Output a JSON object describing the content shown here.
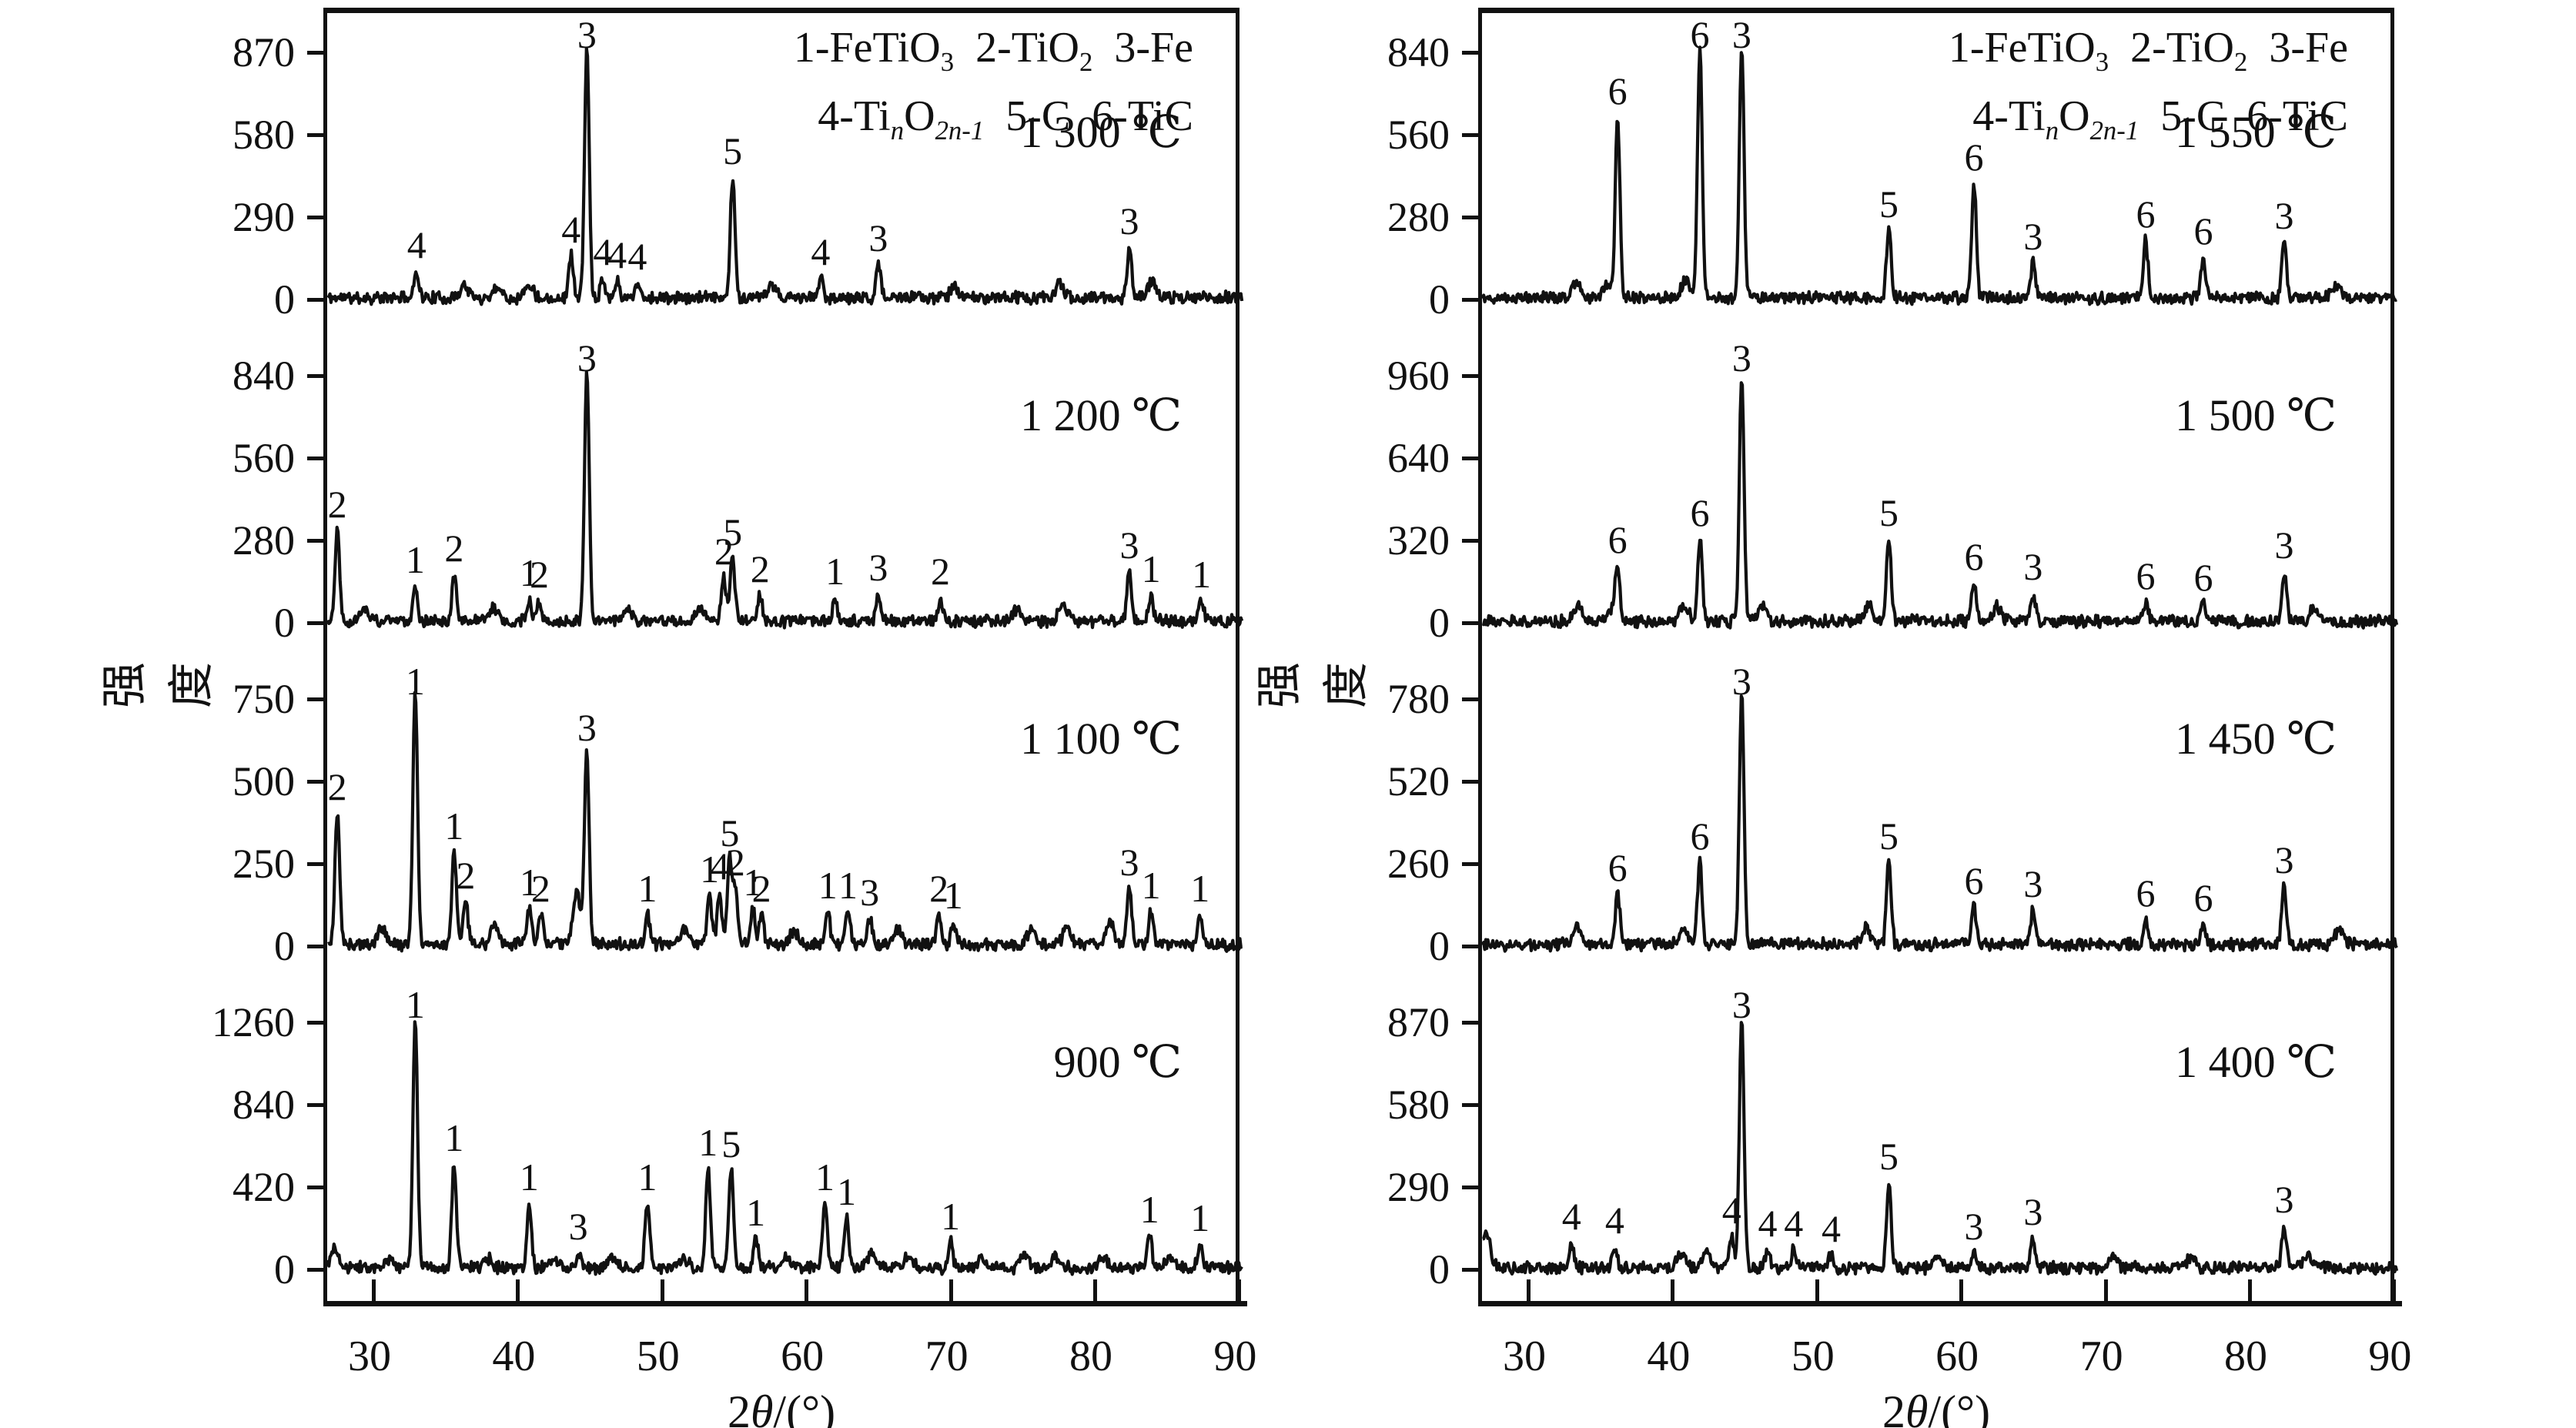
{
  "chart_data": {
    "type": "line",
    "title": "",
    "xlabel": "2θ/(°)",
    "ylabel": "强度",
    "x_range": [
      26.8,
      90.3
    ],
    "xticks": [
      30,
      40,
      50,
      60,
      70,
      80,
      90
    ],
    "grid": false,
    "ink_color": "#111111",
    "background_color": "#ffffff",
    "legend_text": [
      "1-FeTiO3  2-TiO2  3-Fe",
      "4-TinO2n-1  5-C  6-TiC"
    ],
    "legend_segments": [
      [
        [
          "1-FeTiO",
          ""
        ],
        [
          "3",
          "sub"
        ],
        [
          "  2-TiO",
          ""
        ],
        [
          "2",
          "sub"
        ],
        [
          "  3-Fe",
          ""
        ]
      ],
      [
        [
          "4-Ti",
          ""
        ],
        [
          "n",
          "isub"
        ],
        [
          "O",
          ""
        ],
        [
          "2n-1",
          "isub"
        ],
        [
          "  5-C  6-TiC",
          ""
        ]
      ]
    ],
    "xlabel_segments": [
      [
        "2",
        ""
      ],
      [
        "θ",
        "ital"
      ],
      [
        "/(°)",
        ""
      ]
    ],
    "phase_key": {
      "1": "FeTiO3",
      "2": "TiO2",
      "3": "Fe",
      "4": "TinO2n-1",
      "5": "C",
      "6": "TiC"
    },
    "panels": [
      {
        "name": "left",
        "subplots": [
          {
            "temperature": "1 300 ℃",
            "yticks": [
              870,
              580,
              290,
              0
            ],
            "seed": 11,
            "peaks": [
              [
                33.0,
                95,
                "4"
              ],
              [
                36.3,
                45,
                null
              ],
              [
                38.6,
                40,
                null
              ],
              [
                40.8,
                50,
                null
              ],
              [
                43.7,
                150,
                "4"
              ],
              [
                44.8,
                880,
                "3"
              ],
              [
                45.9,
                70,
                "4"
              ],
              [
                46.9,
                60,
                "4"
              ],
              [
                48.3,
                55,
                "4"
              ],
              [
                54.9,
                425,
                "5"
              ],
              [
                57.6,
                40,
                null
              ],
              [
                61.0,
                70,
                "4"
              ],
              [
                65.0,
                120,
                "3"
              ],
              [
                70.3,
                40,
                null
              ],
              [
                77.6,
                50,
                null
              ],
              [
                82.4,
                180,
                "3"
              ],
              [
                84.0,
                60,
                null
              ]
            ]
          },
          {
            "temperature": "1 200 ℃",
            "yticks": [
              840,
              560,
              280,
              0
            ],
            "seed": 22,
            "peaks": [
              [
                27.5,
                310,
                "2"
              ],
              [
                29.4,
                50,
                null
              ],
              [
                32.9,
                120,
                "1"
              ],
              [
                35.6,
                160,
                "2"
              ],
              [
                38.3,
                45,
                null
              ],
              [
                40.8,
                75,
                "1"
              ],
              [
                41.5,
                70,
                "2"
              ],
              [
                44.8,
                850,
                "3"
              ],
              [
                47.6,
                40,
                null
              ],
              [
                52.6,
                45,
                null
              ],
              [
                54.3,
                150,
                "2"
              ],
              [
                54.9,
                215,
                "5"
              ],
              [
                56.8,
                90,
                "2"
              ],
              [
                62.0,
                80,
                "1"
              ],
              [
                65.0,
                95,
                "3"
              ],
              [
                69.3,
                80,
                "2"
              ],
              [
                74.6,
                40,
                null
              ],
              [
                77.8,
                60,
                null
              ],
              [
                82.4,
                170,
                "3"
              ],
              [
                83.9,
                90,
                "1"
              ],
              [
                87.4,
                70,
                "1"
              ]
            ]
          },
          {
            "temperature": "1 100 ℃",
            "yticks": [
              750,
              500,
              250,
              0
            ],
            "seed": 33,
            "peaks": [
              [
                27.5,
                400,
                "2"
              ],
              [
                30.6,
                50,
                null
              ],
              [
                32.9,
                770,
                "1"
              ],
              [
                35.6,
                280,
                "1"
              ],
              [
                36.4,
                130,
                "2"
              ],
              [
                38.4,
                60,
                null
              ],
              [
                40.8,
                110,
                "1"
              ],
              [
                41.6,
                90,
                "2"
              ],
              [
                44.1,
                150,
                null
              ],
              [
                44.8,
                580,
                "3"
              ],
              [
                49.0,
                90,
                "1"
              ],
              [
                51.6,
                50,
                null
              ],
              [
                53.3,
                150,
                "1"
              ],
              [
                54.0,
                160,
                "4"
              ],
              [
                54.7,
                260,
                "5"
              ],
              [
                55.1,
                170,
                "2"
              ],
              [
                56.3,
                110,
                "1"
              ],
              [
                56.9,
                90,
                "2"
              ],
              [
                59.2,
                40,
                null
              ],
              [
                61.5,
                100,
                "1"
              ],
              [
                62.9,
                100,
                "1"
              ],
              [
                64.4,
                80,
                "3"
              ],
              [
                66.3,
                50,
                null
              ],
              [
                69.2,
                90,
                "2"
              ],
              [
                70.2,
                70,
                "1"
              ],
              [
                75.6,
                45,
                null
              ],
              [
                78.1,
                50,
                null
              ],
              [
                81.0,
                70,
                null
              ],
              [
                82.4,
                170,
                "3"
              ],
              [
                83.9,
                100,
                "1"
              ],
              [
                87.3,
                90,
                "1"
              ]
            ]
          },
          {
            "temperature": "900 ℃",
            "yticks": [
              1260,
              840,
              420,
              0
            ],
            "seed": 44,
            "peaks": [
              [
                27.3,
                90,
                null
              ],
              [
                31.1,
                40,
                null
              ],
              [
                32.9,
                1270,
                "1"
              ],
              [
                35.6,
                530,
                "1"
              ],
              [
                37.9,
                50,
                null
              ],
              [
                40.8,
                330,
                "1"
              ],
              [
                42.6,
                45,
                null
              ],
              [
                44.2,
                80,
                "3"
              ],
              [
                46.6,
                60,
                null
              ],
              [
                49.0,
                330,
                "1"
              ],
              [
                51.6,
                45,
                null
              ],
              [
                53.2,
                505,
                "1"
              ],
              [
                54.8,
                500,
                "5"
              ],
              [
                56.5,
                150,
                "1"
              ],
              [
                58.6,
                60,
                null
              ],
              [
                61.3,
                330,
                "1"
              ],
              [
                62.8,
                255,
                "1"
              ],
              [
                64.6,
                80,
                null
              ],
              [
                67.1,
                60,
                null
              ],
              [
                70.0,
                130,
                "1"
              ],
              [
                72.2,
                50,
                null
              ],
              [
                75.1,
                60,
                null
              ],
              [
                77.2,
                50,
                null
              ],
              [
                80.6,
                60,
                null
              ],
              [
                83.8,
                165,
                "1"
              ],
              [
                85.2,
                50,
                null
              ],
              [
                87.3,
                120,
                "1"
              ]
            ]
          }
        ]
      },
      {
        "name": "right",
        "subplots": [
          {
            "temperature": "1 550 ℃",
            "yticks": [
              840,
              560,
              280,
              0
            ],
            "seed": 55,
            "peaks": [
              [
                33.4,
                60,
                null
              ],
              [
                35.4,
                45,
                null
              ],
              [
                36.2,
                615,
                "6"
              ],
              [
                40.9,
                60,
                null
              ],
              [
                41.9,
                850,
                "6"
              ],
              [
                44.8,
                845,
                "3"
              ],
              [
                55.0,
                230,
                "5"
              ],
              [
                60.9,
                390,
                "6"
              ],
              [
                65.0,
                120,
                "3"
              ],
              [
                72.8,
                195,
                "6"
              ],
              [
                76.8,
                140,
                "6"
              ],
              [
                82.4,
                190,
                "3"
              ],
              [
                86.0,
                45,
                null
              ]
            ]
          },
          {
            "temperature": "1 500 ℃",
            "yticks": [
              960,
              640,
              320,
              0
            ],
            "seed": 66,
            "peaks": [
              [
                33.5,
                65,
                null
              ],
              [
                35.8,
                40,
                null
              ],
              [
                36.2,
                215,
                "6"
              ],
              [
                40.8,
                70,
                null
              ],
              [
                41.9,
                320,
                "6"
              ],
              [
                44.8,
                950,
                "3"
              ],
              [
                46.2,
                60,
                null
              ],
              [
                53.6,
                60,
                null
              ],
              [
                55.0,
                320,
                "5"
              ],
              [
                60.9,
                150,
                "6"
              ],
              [
                62.5,
                55,
                null
              ],
              [
                65.0,
                110,
                "3"
              ],
              [
                72.8,
                75,
                "6"
              ],
              [
                76.8,
                70,
                "6"
              ],
              [
                82.4,
                195,
                "3"
              ],
              [
                84.5,
                50,
                null
              ]
            ]
          },
          {
            "temperature": "1 450 ℃",
            "yticks": [
              780,
              520,
              260,
              0
            ],
            "seed": 77,
            "peaks": [
              [
                33.4,
                55,
                null
              ],
              [
                36.2,
                160,
                "6"
              ],
              [
                40.8,
                55,
                null
              ],
              [
                41.9,
                260,
                "6"
              ],
              [
                44.8,
                790,
                "3"
              ],
              [
                53.4,
                50,
                null
              ],
              [
                55.0,
                260,
                "5"
              ],
              [
                60.9,
                120,
                "6"
              ],
              [
                65.0,
                110,
                "3"
              ],
              [
                72.8,
                80,
                "6"
              ],
              [
                76.8,
                65,
                "6"
              ],
              [
                82.4,
                185,
                "3"
              ],
              [
                86.2,
                45,
                null
              ]
            ]
          },
          {
            "temperature": "1 400 ℃",
            "yticks": [
              870,
              580,
              290,
              0
            ],
            "seed": 88,
            "peaks": [
              [
                27.1,
                130,
                null
              ],
              [
                33.0,
                90,
                "4"
              ],
              [
                36.0,
                75,
                "4"
              ],
              [
                40.6,
                45,
                null
              ],
              [
                42.4,
                55,
                null
              ],
              [
                44.1,
                110,
                "4"
              ],
              [
                44.8,
                880,
                "3"
              ],
              [
                46.6,
                65,
                "4"
              ],
              [
                48.4,
                65,
                "4"
              ],
              [
                51.0,
                45,
                "4"
              ],
              [
                55.0,
                300,
                "5"
              ],
              [
                58.4,
                40,
                null
              ],
              [
                60.9,
                55,
                "3"
              ],
              [
                65.0,
                105,
                "3"
              ],
              [
                70.5,
                40,
                null
              ],
              [
                76.0,
                40,
                null
              ],
              [
                82.4,
                150,
                "3"
              ],
              [
                84.0,
                50,
                null
              ]
            ]
          }
        ]
      }
    ]
  }
}
